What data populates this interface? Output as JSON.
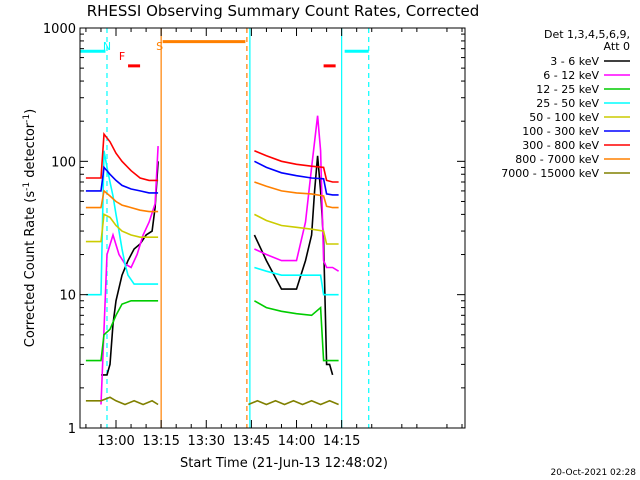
{
  "chart_data": {
    "type": "line",
    "title": "RHESSI Observing Summary Count Rates, Corrected",
    "xlabel": "Start Time (21-Jun-13 12:48:02)",
    "ylabel_prefix": "Corrected Count Rate (s",
    "ylabel_sup1": "-1",
    "ylabel_mid": " detector",
    "ylabel_sup2": "-1",
    "ylabel_suffix": ")",
    "yscale": "log",
    "ylim": [
      1,
      1000
    ],
    "xlim_minutes": [
      768.03,
      896.0
    ],
    "x_ticks": [
      {
        "label": "13:00",
        "minutes": 780
      },
      {
        "label": "13:15",
        "minutes": 795
      },
      {
        "label": "13:30",
        "minutes": 810
      },
      {
        "label": "13:45",
        "minutes": 825
      },
      {
        "label": "14:00",
        "minutes": 840
      },
      {
        "label": "14:15",
        "minutes": 855
      }
    ],
    "y_ticks": [
      {
        "label": "1",
        "value": 1
      },
      {
        "label": "10",
        "value": 10
      },
      {
        "label": "100",
        "value": 100
      },
      {
        "label": "1000",
        "value": 1000
      }
    ],
    "legend_header": [
      "Det 1,3,4,5,6,9,",
      "Att 0"
    ],
    "legend_placement": "right",
    "series": [
      {
        "name": "3 - 6 keV",
        "color": "#000000",
        "segments": [
          [
            [
              775,
              2.5
            ],
            [
              777,
              2.5
            ],
            [
              778,
              3
            ],
            [
              779,
              6
            ],
            [
              780,
              9
            ],
            [
              782,
              14
            ],
            [
              784,
              18
            ],
            [
              786,
              22
            ],
            [
              788,
              24
            ],
            [
              790,
              28
            ],
            [
              792,
              30
            ],
            [
              793,
              45
            ],
            [
              794,
              100
            ]
          ],
          [
            [
              826,
              28
            ],
            [
              830,
              18
            ],
            [
              835,
              11
            ],
            [
              840,
              11
            ],
            [
              843,
              18
            ],
            [
              845,
              28
            ],
            [
              846,
              60
            ],
            [
              847,
              110
            ],
            [
              848,
              60
            ],
            [
              849,
              25
            ],
            [
              850,
              3
            ],
            [
              851,
              3
            ],
            [
              852,
              2.5
            ]
          ]
        ]
      },
      {
        "name": "6 - 12 keV",
        "color": "#ff00ff",
        "segments": [
          [
            [
              775,
              1.5
            ],
            [
              777,
              20
            ],
            [
              779,
              28
            ],
            [
              781,
              20
            ],
            [
              783,
              17
            ],
            [
              785,
              16
            ],
            [
              787,
              20
            ],
            [
              789,
              28
            ],
            [
              791,
              35
            ],
            [
              793,
              48
            ],
            [
              794,
              130
            ]
          ],
          [
            [
              826,
              22
            ],
            [
              830,
              20
            ],
            [
              835,
              18
            ],
            [
              840,
              18
            ],
            [
              843,
              35
            ],
            [
              845,
              90
            ],
            [
              847,
              220
            ],
            [
              848,
              120
            ],
            [
              849,
              18
            ],
            [
              850,
              16
            ],
            [
              852,
              16
            ],
            [
              854,
              15
            ]
          ]
        ]
      },
      {
        "name": "12 - 25 keV",
        "color": "#00cc00",
        "segments": [
          [
            [
              770,
              3.2
            ],
            [
              775,
              3.2
            ],
            [
              776,
              5
            ],
            [
              778,
              5.5
            ],
            [
              780,
              7
            ],
            [
              782,
              8.5
            ],
            [
              785,
              9
            ],
            [
              788,
              9
            ],
            [
              791,
              9
            ],
            [
              794,
              9
            ]
          ],
          [
            [
              826,
              9
            ],
            [
              830,
              8
            ],
            [
              835,
              7.5
            ],
            [
              840,
              7.2
            ],
            [
              845,
              7
            ],
            [
              848,
              8
            ],
            [
              849,
              3.2
            ],
            [
              852,
              3.2
            ],
            [
              854,
              3.2
            ]
          ]
        ]
      },
      {
        "name": "25 - 50 keV",
        "color": "#00ffff",
        "segments": [
          [
            [
              770,
              10
            ],
            [
              775,
              10
            ],
            [
              776,
              120
            ],
            [
              777,
              90
            ],
            [
              778,
              70
            ],
            [
              779,
              55
            ],
            [
              780,
              40
            ],
            [
              781,
              30
            ],
            [
              782,
              22
            ],
            [
              783,
              17
            ],
            [
              784,
              14
            ],
            [
              786,
              12
            ],
            [
              789,
              12
            ],
            [
              792,
              12
            ],
            [
              794,
              12
            ]
          ],
          [
            [
              826,
              16
            ],
            [
              830,
              15
            ],
            [
              835,
              14
            ],
            [
              840,
              14
            ],
            [
              845,
              14
            ],
            [
              848,
              14
            ],
            [
              849,
              10
            ],
            [
              852,
              10
            ],
            [
              854,
              10
            ]
          ]
        ]
      },
      {
        "name": "50 - 100 keV",
        "color": "#cccc00",
        "segments": [
          [
            [
              770,
              25
            ],
            [
              775,
              25
            ],
            [
              776,
              40
            ],
            [
              778,
              38
            ],
            [
              780,
              33
            ],
            [
              782,
              30
            ],
            [
              785,
              28
            ],
            [
              788,
              27
            ],
            [
              791,
              27
            ],
            [
              794,
              27
            ]
          ],
          [
            [
              826,
              40
            ],
            [
              830,
              36
            ],
            [
              835,
              33
            ],
            [
              840,
              32
            ],
            [
              845,
              31
            ],
            [
              849,
              30
            ],
            [
              850,
              24
            ],
            [
              852,
              24
            ],
            [
              854,
              24
            ]
          ]
        ]
      },
      {
        "name": "100 - 300 keV",
        "color": "#0000ff",
        "segments": [
          [
            [
              770,
              60
            ],
            [
              775,
              60
            ],
            [
              776,
              90
            ],
            [
              778,
              80
            ],
            [
              780,
              72
            ],
            [
              782,
              66
            ],
            [
              785,
              62
            ],
            [
              788,
              60
            ],
            [
              791,
              58
            ],
            [
              794,
              58
            ]
          ],
          [
            [
              826,
              100
            ],
            [
              830,
              90
            ],
            [
              835,
              82
            ],
            [
              840,
              78
            ],
            [
              845,
              75
            ],
            [
              849,
              74
            ],
            [
              850,
              57
            ],
            [
              852,
              56
            ],
            [
              854,
              56
            ]
          ]
        ]
      },
      {
        "name": "300 - 800 keV",
        "color": "#ff0000",
        "segments": [
          [
            [
              770,
              75
            ],
            [
              775,
              75
            ],
            [
              776,
              160
            ],
            [
              778,
              140
            ],
            [
              780,
              115
            ],
            [
              782,
              100
            ],
            [
              785,
              85
            ],
            [
              788,
              75
            ],
            [
              791,
              72
            ],
            [
              794,
              72
            ]
          ],
          [
            [
              826,
              120
            ],
            [
              830,
              110
            ],
            [
              835,
              100
            ],
            [
              840,
              95
            ],
            [
              845,
              92
            ],
            [
              849,
              90
            ],
            [
              850,
              72
            ],
            [
              852,
              70
            ],
            [
              854,
              70
            ]
          ]
        ]
      },
      {
        "name": "800 - 7000 keV",
        "color": "#ff8000",
        "segments": [
          [
            [
              770,
              45
            ],
            [
              775,
              45
            ],
            [
              776,
              60
            ],
            [
              778,
              55
            ],
            [
              780,
              50
            ],
            [
              782,
              47
            ],
            [
              785,
              45
            ],
            [
              788,
              43
            ],
            [
              791,
              42
            ],
            [
              794,
              42
            ]
          ],
          [
            [
              826,
              70
            ],
            [
              830,
              65
            ],
            [
              835,
              60
            ],
            [
              840,
              58
            ],
            [
              845,
              57
            ],
            [
              849,
              55
            ],
            [
              850,
              46
            ],
            [
              852,
              45
            ],
            [
              854,
              45
            ]
          ]
        ]
      },
      {
        "name": "7000 - 15000 keV",
        "color": "#808000",
        "segments": [
          [
            [
              770,
              1.6
            ],
            [
              775,
              1.6
            ],
            [
              778,
              1.7
            ],
            [
              780,
              1.6
            ],
            [
              783,
              1.5
            ],
            [
              786,
              1.6
            ],
            [
              789,
              1.5
            ],
            [
              792,
              1.6
            ],
            [
              794,
              1.5
            ]
          ],
          [
            [
              824,
              1.5
            ],
            [
              827,
              1.6
            ],
            [
              830,
              1.5
            ],
            [
              833,
              1.6
            ],
            [
              836,
              1.5
            ],
            [
              839,
              1.6
            ],
            [
              842,
              1.5
            ],
            [
              845,
              1.6
            ],
            [
              848,
              1.5
            ],
            [
              851,
              1.6
            ],
            [
              854,
              1.5
            ]
          ]
        ]
      }
    ],
    "annotations": [
      {
        "label": "N",
        "color": "#00ffff",
        "minutes": 777
      },
      {
        "label": "F",
        "color": "#ff0000",
        "minutes": 782
      },
      {
        "label": "S",
        "color": "#ff8000",
        "minutes": 794.5
      }
    ],
    "boundary_lines": [
      {
        "kind": "night",
        "color": "#00ffff",
        "style": "dashed",
        "minutes": 777
      },
      {
        "kind": "saa-start",
        "color": "#ff8000",
        "style": "solid",
        "minutes": 795
      },
      {
        "kind": "saa-end",
        "color": "#ff8000",
        "style": "dashed",
        "minutes": 823.5
      },
      {
        "kind": "day",
        "color": "#00ffff",
        "style": "solid",
        "minutes": 824.5
      },
      {
        "kind": "night",
        "color": "#00ffff",
        "style": "solid",
        "minutes": 855
      },
      {
        "kind": "night-end",
        "color": "#00ffff",
        "style": "dashed",
        "minutes": 864
      }
    ],
    "flag_bars": [
      {
        "kind": "night",
        "color": "#00ffff",
        "from": 768,
        "to": 776.5,
        "value": 670
      },
      {
        "kind": "flare",
        "color": "#ff0000",
        "from": 784,
        "to": 788,
        "value": 520
      },
      {
        "kind": "saa",
        "color": "#ff8000",
        "from": 795.5,
        "to": 823,
        "value": 790
      },
      {
        "kind": "flare",
        "color": "#ff0000",
        "from": 849,
        "to": 853,
        "value": 520
      },
      {
        "kind": "night",
        "color": "#00ffff",
        "from": 856,
        "to": 864,
        "value": 670
      }
    ],
    "grid": false
  },
  "footer": {
    "timestamp": "20-Oct-2021 02:28"
  }
}
